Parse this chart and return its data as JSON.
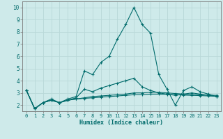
{
  "xlabel": "Humidex (Indice chaleur)",
  "background_color": "#ceeaea",
  "grid_color": "#b8d8d8",
  "line_color": "#006b6b",
  "xlim": [
    -0.5,
    23.5
  ],
  "ylim": [
    1.5,
    10.5
  ],
  "yticks": [
    2,
    3,
    4,
    5,
    6,
    7,
    8,
    9,
    10
  ],
  "xticks": [
    0,
    1,
    2,
    3,
    4,
    5,
    6,
    7,
    8,
    9,
    10,
    11,
    12,
    13,
    14,
    15,
    16,
    17,
    18,
    19,
    20,
    21,
    22,
    23
  ],
  "series": [
    [
      3.2,
      1.7,
      2.2,
      2.5,
      2.2,
      2.5,
      2.7,
      4.8,
      4.5,
      5.5,
      6.0,
      7.4,
      8.6,
      10.0,
      8.6,
      7.9,
      4.5,
      3.3,
      2.0,
      3.2,
      3.5,
      3.1,
      2.9,
      2.7
    ],
    [
      3.2,
      1.7,
      2.2,
      2.4,
      2.2,
      2.4,
      2.6,
      3.3,
      3.1,
      3.4,
      3.6,
      3.8,
      4.0,
      4.2,
      3.5,
      3.2,
      3.0,
      2.9,
      2.8,
      2.9,
      3.0,
      2.9,
      2.8,
      2.7
    ],
    [
      3.2,
      1.7,
      2.2,
      2.4,
      2.2,
      2.4,
      2.5,
      2.6,
      2.7,
      2.75,
      2.8,
      2.85,
      2.9,
      3.0,
      3.0,
      3.05,
      3.05,
      3.0,
      2.95,
      2.9,
      2.85,
      2.85,
      2.82,
      2.8
    ],
    [
      3.2,
      1.7,
      2.2,
      2.4,
      2.2,
      2.4,
      2.5,
      2.55,
      2.6,
      2.65,
      2.7,
      2.75,
      2.8,
      2.85,
      2.85,
      2.9,
      2.9,
      2.88,
      2.85,
      2.82,
      2.8,
      2.78,
      2.75,
      2.73
    ]
  ]
}
